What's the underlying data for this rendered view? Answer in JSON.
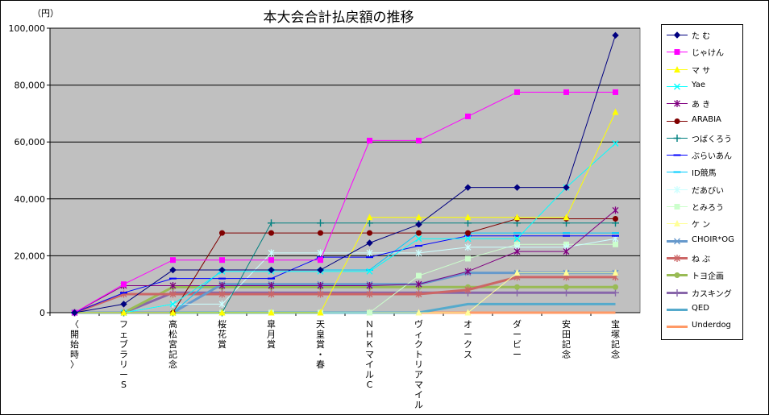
{
  "chart_data": {
    "type": "line",
    "title": "本大会合計払戻額の推移",
    "y_unit_label": "（円）",
    "ylim": [
      0,
      100000
    ],
    "y_ticks": [
      "0",
      "20,000",
      "40,000",
      "60,000",
      "80,000",
      "100,000"
    ],
    "y_tick_values": [
      0,
      20000,
      40000,
      60000,
      80000,
      100000
    ],
    "grid": "horizontal",
    "legend_position": "right",
    "plot_background": "#c0c0c0",
    "categories": [
      "〈開始時〉",
      "フェブラリーS",
      "高松宮記念",
      "桜花賞",
      "皐月賞",
      "天皇賞・春",
      "ＮＨＫマイルC",
      "ヴィクトリアマイル",
      "オークス",
      "ダービー",
      "安田記念",
      "宝塚記念"
    ],
    "series": [
      {
        "name": "た む",
        "color": "#000080",
        "marker": "diamond",
        "width": 1,
        "values": [
          0,
          3000,
          15000,
          15000,
          15000,
          15000,
          24500,
          31000,
          44000,
          44000,
          44000,
          97500
        ]
      },
      {
        "name": "じゃけん",
        "color": "#ff00ff",
        "marker": "square",
        "width": 1,
        "values": [
          0,
          10000,
          18500,
          18500,
          18500,
          18500,
          60500,
          60500,
          69000,
          77500,
          77500,
          77500
        ]
      },
      {
        "name": "マ サ",
        "color": "#ffff00",
        "marker": "triangle",
        "width": 1,
        "values": [
          0,
          0,
          0,
          0,
          0,
          0,
          33500,
          33500,
          33500,
          33500,
          33500,
          70500
        ]
      },
      {
        "name": "Yae",
        "color": "#00ffff",
        "marker": "x",
        "width": 1,
        "values": [
          0,
          0,
          3000,
          14500,
          14500,
          14500,
          14500,
          26000,
          26000,
          26000,
          44000,
          59500
        ]
      },
      {
        "name": "あ き",
        "color": "#800080",
        "marker": "star",
        "width": 1,
        "values": [
          0,
          9500,
          9500,
          9500,
          9500,
          9500,
          9500,
          10000,
          14500,
          21500,
          21500,
          36000
        ]
      },
      {
        "name": "ARABIA",
        "color": "#800000",
        "marker": "circle",
        "width": 1,
        "values": [
          0,
          0,
          0,
          28000,
          28000,
          28000,
          28000,
          28000,
          28000,
          33000,
          33000,
          33000
        ]
      },
      {
        "name": "つばくろう",
        "color": "#008080",
        "marker": "plus",
        "width": 1,
        "values": [
          0,
          0,
          0,
          0,
          31500,
          31500,
          31500,
          31500,
          31500,
          31500,
          31500,
          31500
        ]
      },
      {
        "name": "ぶらいあん",
        "color": "#0000ff",
        "marker": "dash",
        "width": 1,
        "values": [
          0,
          7000,
          12000,
          12000,
          12000,
          19500,
          19500,
          23500,
          27000,
          27000,
          27000,
          27000
        ]
      },
      {
        "name": "ID競馬",
        "color": "#00ccff",
        "marker": "dash",
        "width": 1,
        "values": [
          0,
          0,
          0,
          15000,
          15000,
          15000,
          15000,
          28000,
          28000,
          28000,
          28000,
          28000
        ]
      },
      {
        "name": "だあびい",
        "color": "#ccffff",
        "marker": "star",
        "width": 1,
        "values": [
          0,
          0,
          3000,
          3000,
          21000,
          21000,
          21000,
          21000,
          23000,
          23000,
          23000,
          26000
        ]
      },
      {
        "name": "とみろう",
        "color": "#ccffcc",
        "marker": "square",
        "width": 1,
        "values": [
          0,
          0,
          0,
          0,
          0,
          0,
          0,
          13000,
          19000,
          24000,
          24000,
          24000
        ]
      },
      {
        "name": "ケ ン",
        "color": "#ffff99",
        "marker": "triangle",
        "width": 1,
        "values": [
          0,
          0,
          0,
          0,
          0,
          0,
          0,
          0,
          0,
          14000,
          14000,
          14000
        ]
      },
      {
        "name": "CHOIR*OG",
        "color": "#6699cc",
        "marker": "x",
        "width": 3,
        "values": [
          0,
          0,
          0,
          10000,
          10000,
          10000,
          10000,
          10000,
          14000,
          14000,
          14000,
          14000
        ]
      },
      {
        "name": "ね ぶ",
        "color": "#cc6666",
        "marker": "star",
        "width": 3,
        "values": [
          0,
          6500,
          6500,
          6500,
          6500,
          6500,
          6500,
          6500,
          8000,
          12500,
          12500,
          12500
        ]
      },
      {
        "name": "トヨ企画",
        "color": "#99bb55",
        "marker": "circle",
        "width": 3,
        "values": [
          0,
          0,
          9000,
          9000,
          9000,
          9000,
          9000,
          9000,
          9000,
          9000,
          9000,
          9000
        ]
      },
      {
        "name": "カスキング",
        "color": "#8866aa",
        "marker": "plus",
        "width": 3,
        "values": [
          0,
          0,
          7000,
          7000,
          7000,
          7000,
          7000,
          7000,
          7000,
          7000,
          7000,
          7000
        ]
      },
      {
        "name": "QED",
        "color": "#55aacc",
        "marker": "none",
        "width": 3,
        "values": [
          0,
          0,
          0,
          0,
          0,
          0,
          0,
          0,
          3000,
          3000,
          3000,
          3000
        ]
      },
      {
        "name": "Underdog",
        "color": "#ff9966",
        "marker": "none",
        "width": 3,
        "values": [
          0,
          0,
          0,
          0,
          0,
          0,
          0,
          0,
          0,
          0,
          0,
          0
        ]
      }
    ]
  }
}
